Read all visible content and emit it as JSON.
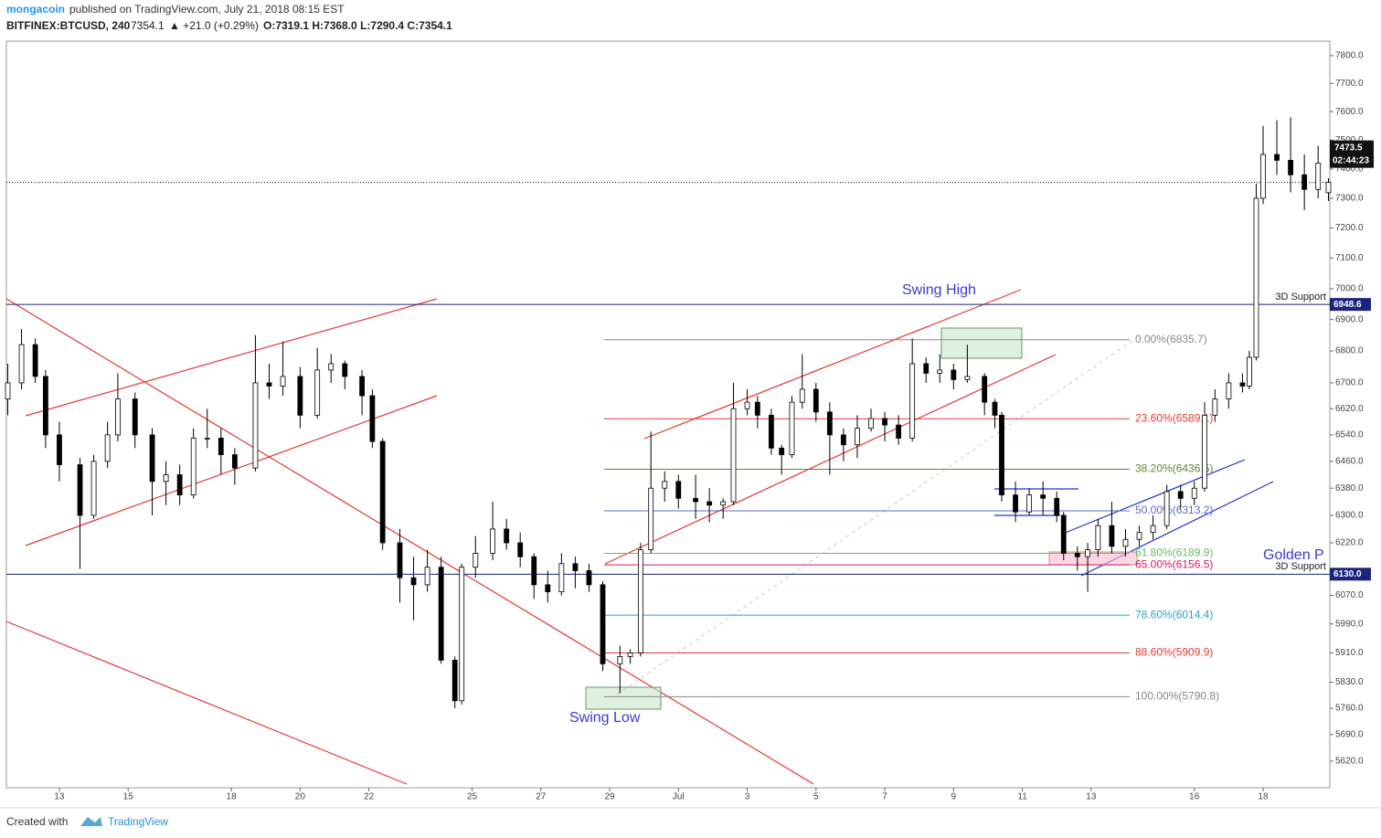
{
  "header": {
    "author": "mongacoin",
    "published": "published on TradingView.com, July 21, 2018 08:15 EST",
    "symbol": "BITFINEX:BTCUSD, 240",
    "price": "7354.1",
    "change": "▲ +21.0 (+0.29%)",
    "ohlc": "O:7319.1 H:7368.0 L:7290.4 C:7354.1"
  },
  "footer": {
    "created": "Created with",
    "brand": "TradingView"
  },
  "annotations": {
    "swing_high": "Swing High",
    "swing_low": "Swing Low",
    "golden": "Golden P"
  },
  "chart_data": {
    "type": "candlestick",
    "log_scale": true,
    "up_color": "#ffffff",
    "down_color": "#000000",
    "xlim": [
      -1.54,
      36.94
    ],
    "ylim": [
      5551,
      7853
    ],
    "xticks": [
      {
        "value": 0,
        "label": "13"
      },
      {
        "value": 2,
        "label": "15"
      },
      {
        "value": 5,
        "label": "18"
      },
      {
        "value": 7,
        "label": "20"
      },
      {
        "value": 9,
        "label": "22"
      },
      {
        "value": 12,
        "label": "25"
      },
      {
        "value": 14,
        "label": "27"
      },
      {
        "value": 16,
        "label": "29"
      },
      {
        "value": 18,
        "label": "Jul"
      },
      {
        "value": 20,
        "label": "3"
      },
      {
        "value": 22,
        "label": "5"
      },
      {
        "value": 24,
        "label": "7"
      },
      {
        "value": 26,
        "label": "9"
      },
      {
        "value": 28,
        "label": "11"
      },
      {
        "value": 30,
        "label": "13"
      },
      {
        "value": 33,
        "label": "16"
      },
      {
        "value": 35,
        "label": "18"
      }
    ],
    "yticks": [
      {
        "value": 7800,
        "label": "7800.0"
      },
      {
        "value": 7700,
        "label": "7700.0"
      },
      {
        "value": 7600,
        "label": "7600.0"
      },
      {
        "value": 7500,
        "label": "7500.0"
      },
      {
        "value": 7400,
        "label": "7400.0"
      },
      {
        "value": 7300,
        "label": "7300.0"
      },
      {
        "value": 7200,
        "label": "7200.0"
      },
      {
        "value": 7100,
        "label": "7100.0"
      },
      {
        "value": 7000,
        "label": "7000.0"
      },
      {
        "value": 6900,
        "label": "6900.0"
      },
      {
        "value": 6800,
        "label": "6800.0"
      },
      {
        "value": 6700,
        "label": "6700.0"
      },
      {
        "value": 6620,
        "label": "6620.0"
      },
      {
        "value": 6540,
        "label": "6540.0"
      },
      {
        "value": 6460,
        "label": "6460.0"
      },
      {
        "value": 6380,
        "label": "6380.0"
      },
      {
        "value": 6300,
        "label": "6300.0"
      },
      {
        "value": 6220,
        "label": "6220.0"
      },
      {
        "value": 6070,
        "label": "6070.0"
      },
      {
        "value": 5990,
        "label": "5990.0"
      },
      {
        "value": 5910,
        "label": "5910.0"
      },
      {
        "value": 5830,
        "label": "5830.0"
      },
      {
        "value": 5760,
        "label": "5760.0"
      },
      {
        "value": 5690,
        "label": "5690.0"
      },
      {
        "value": 5620,
        "label": "5620.0"
      }
    ],
    "x": [
      -1.5,
      -1.1,
      -0.7,
      -0.4,
      0.0,
      0.6,
      1.0,
      1.4,
      1.7,
      2.2,
      2.7,
      3.1,
      3.5,
      3.9,
      4.3,
      4.7,
      5.1,
      5.7,
      6.1,
      6.5,
      7.0,
      7.5,
      7.9,
      8.3,
      8.8,
      9.1,
      9.4,
      9.9,
      10.3,
      10.7,
      11.1,
      11.5,
      11.7,
      12.1,
      12.6,
      13.0,
      13.4,
      13.8,
      14.2,
      14.6,
      15.0,
      15.4,
      15.8,
      16.3,
      16.6,
      16.9,
      17.2,
      17.6,
      18.0,
      18.5,
      18.9,
      19.3,
      19.6,
      20.0,
      20.3,
      20.7,
      21.0,
      21.3,
      21.6,
      22.0,
      22.4,
      22.8,
      23.2,
      23.6,
      24.0,
      24.4,
      24.8,
      25.2,
      25.6,
      26.0,
      26.4,
      26.9,
      27.2,
      27.4,
      27.8,
      28.2,
      28.6,
      29.0,
      29.2,
      29.6,
      29.9,
      30.2,
      30.6,
      31.0,
      31.4,
      31.8,
      32.2,
      32.6,
      33.0,
      33.3,
      33.6,
      34.0,
      34.4,
      34.6,
      34.8,
      35.0,
      35.4,
      35.8,
      36.2,
      36.6,
      36.9
    ],
    "open": [
      6650,
      6700,
      6820,
      6720,
      6540,
      6450,
      6300,
      6460,
      6540,
      6650,
      6540,
      6400,
      6420,
      6360,
      6530,
      6530,
      6480,
      6440,
      6700,
      6690,
      6720,
      6600,
      6740,
      6760,
      6720,
      6660,
      6520,
      6220,
      6120,
      6100,
      6150,
      5890,
      5780,
      6150,
      6190,
      6260,
      6220,
      6180,
      6100,
      6080,
      6160,
      6140,
      6100,
      5880,
      5900,
      5910,
      6200,
      6380,
      6400,
      6350,
      6340,
      6330,
      6340,
      6620,
      6640,
      6600,
      6500,
      6480,
      6640,
      6680,
      6610,
      6540,
      6510,
      6560,
      6590,
      6570,
      6530,
      6760,
      6730,
      6740,
      6710,
      6720,
      6640,
      6600,
      6360,
      6310,
      6360,
      6350,
      6300,
      6190,
      6180,
      6200,
      6270,
      6210,
      6230,
      6250,
      6270,
      6370,
      6350,
      6380,
      6600,
      6650,
      6700,
      6690,
      6780,
      7300,
      7450,
      7430,
      7380,
      7330,
      7319.1
    ],
    "high": [
      6760,
      6870,
      6840,
      6740,
      6580,
      6470,
      6480,
      6580,
      6730,
      6670,
      6560,
      6460,
      6450,
      6560,
      6620,
      6560,
      6500,
      6850,
      6760,
      6830,
      6750,
      6810,
      6790,
      6770,
      6740,
      6680,
      6530,
      6260,
      6180,
      6200,
      6180,
      5900,
      6160,
      6240,
      6340,
      6290,
      6250,
      6190,
      6140,
      6190,
      6180,
      6160,
      6110,
      5930,
      5920,
      6220,
      6550,
      6430,
      6420,
      6420,
      6380,
      6350,
      6700,
      6680,
      6660,
      6620,
      6510,
      6660,
      6790,
      6700,
      6640,
      6560,
      6600,
      6620,
      6610,
      6600,
      6840,
      6780,
      6790,
      6760,
      6820,
      6730,
      6650,
      6610,
      6400,
      6380,
      6400,
      6370,
      6310,
      6210,
      6220,
      6290,
      6340,
      6260,
      6270,
      6300,
      6390,
      6390,
      6400,
      6640,
      6680,
      6730,
      6730,
      6800,
      7350,
      7550,
      7570,
      7580,
      7450,
      7480,
      7368.0
    ],
    "low": [
      6600,
      6680,
      6700,
      6500,
      6400,
      6145,
      6290,
      6440,
      6520,
      6500,
      6300,
      6330,
      6330,
      6350,
      6500,
      6420,
      6390,
      6430,
      6650,
      6660,
      6560,
      6590,
      6700,
      6680,
      6600,
      6500,
      6200,
      6050,
      6000,
      6080,
      5880,
      5760,
      5770,
      6120,
      6170,
      6200,
      6150,
      6060,
      6050,
      6070,
      6090,
      6080,
      5860,
      5800,
      5880,
      5900,
      6190,
      6340,
      6320,
      6290,
      6280,
      6290,
      6330,
      6600,
      6560,
      6480,
      6420,
      6470,
      6620,
      6580,
      6420,
      6460,
      6470,
      6550,
      6520,
      6510,
      6520,
      6700,
      6700,
      6680,
      6700,
      6600,
      6560,
      6340,
      6280,
      6300,
      6300,
      6280,
      6170,
      6140,
      6080,
      6180,
      6190,
      6180,
      6210,
      6230,
      6260,
      6320,
      6330,
      6370,
      6580,
      6620,
      6670,
      6680,
      6770,
      7280,
      7380,
      7320,
      7260,
      7300,
      7290.4
    ],
    "close": [
      6700,
      6820,
      6720,
      6540,
      6450,
      6300,
      6460,
      6540,
      6650,
      6540,
      6400,
      6420,
      6360,
      6530,
      6530,
      6480,
      6440,
      6700,
      6690,
      6720,
      6600,
      6740,
      6760,
      6720,
      6660,
      6520,
      6220,
      6120,
      6100,
      6150,
      5890,
      5780,
      6150,
      6190,
      6260,
      6220,
      6180,
      6100,
      6080,
      6160,
      6140,
      6100,
      5880,
      5900,
      5910,
      6200,
      6380,
      6400,
      6350,
      6340,
      6330,
      6340,
      6620,
      6640,
      6600,
      6500,
      6480,
      6640,
      6680,
      6610,
      6540,
      6510,
      6560,
      6590,
      6570,
      6530,
      6760,
      6730,
      6740,
      6710,
      6720,
      6640,
      6600,
      6360,
      6310,
      6360,
      6350,
      6300,
      6190,
      6180,
      6200,
      6270,
      6210,
      6230,
      6250,
      6270,
      6370,
      6350,
      6380,
      6600,
      6650,
      6700,
      6690,
      6780,
      7300,
      7450,
      7430,
      7380,
      7330,
      7420,
      7354.1
    ],
    "last_price": 7354.1,
    "fib_levels": [
      {
        "label": "0.00%(6835.7)",
        "value": 6835.7,
        "color": "#888888"
      },
      {
        "label": "23.60%(6589.1)",
        "value": 6589.1,
        "color": "#e53935"
      },
      {
        "label": "38.20%(6436.5)",
        "value": 6436.5,
        "color": "#558b2f"
      },
      {
        "label": "50.00%(6313.2)",
        "value": 6313.2,
        "color": "#5c6bc0"
      },
      {
        "label": "61.80%(6189.9)",
        "value": 6189.9,
        "color": "#66bb6a"
      },
      {
        "label": "65.00%(6156.5)",
        "value": 6156.5,
        "color": "#d81b60"
      },
      {
        "label": "78.60%(6014.4)",
        "value": 6014.4,
        "color": "#2a9fd6"
      },
      {
        "label": "88.60%(5909.9)",
        "value": 5909.9,
        "color": "#e53935"
      },
      {
        "label": "100.00%(5790.8)",
        "value": 5790.8,
        "color": "#888888"
      }
    ],
    "levels": [
      {
        "value": 6948.6,
        "label": "6948.6",
        "text": "3D Support"
      },
      {
        "value": 6130.0,
        "label": "6130.0",
        "text": "3D Support"
      }
    ],
    "price_tag": {
      "value": 7473.5,
      "label": "7473.5",
      "timer": "02:44:23"
    }
  }
}
